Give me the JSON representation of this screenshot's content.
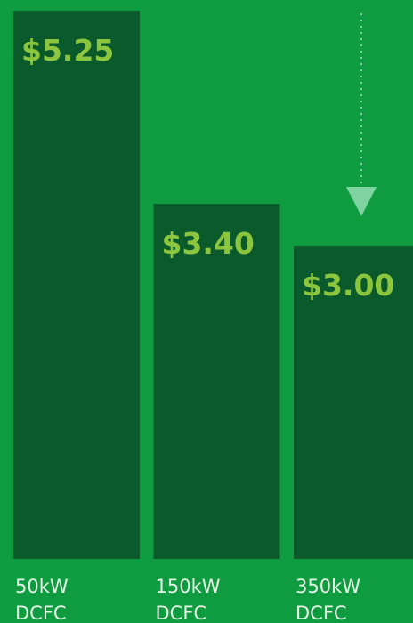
{
  "chart_data": {
    "type": "bar",
    "categories": [
      "50kW DCFC",
      "150kW DCFC",
      "350kW DCFC"
    ],
    "values": [
      5.25,
      3.4,
      3.0
    ],
    "value_labels": [
      "$5.25",
      "$3.40",
      "$3.00"
    ],
    "color": "#0b5a2b"
  }
}
